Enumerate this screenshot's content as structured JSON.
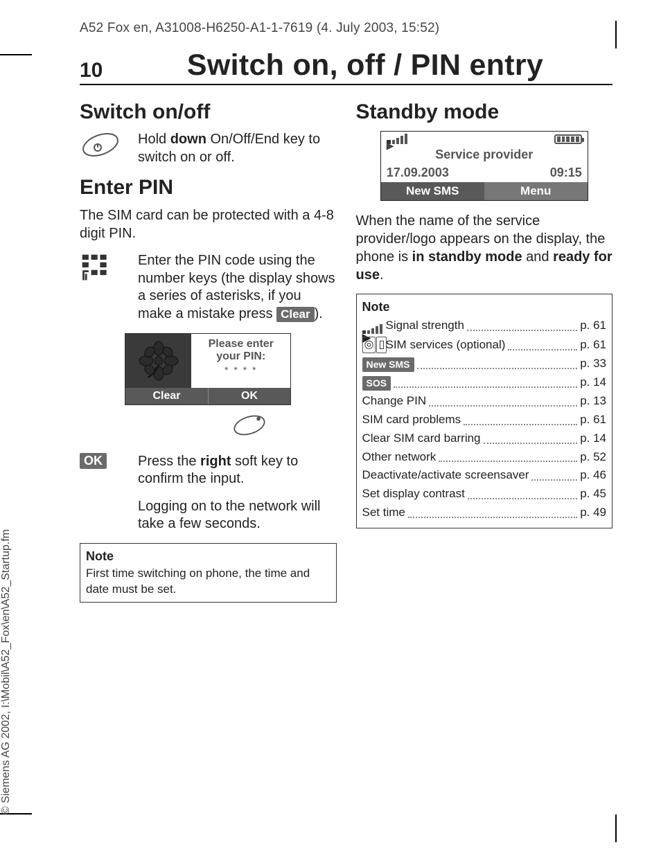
{
  "header": {
    "running": "A52 Fox en, A31008-H6250-A1-1-7619 (4. July 2003, 15:52)"
  },
  "page": {
    "number": "10",
    "title": "Switch on, off / PIN entry"
  },
  "left": {
    "h_switch": "Switch on/off",
    "switch_text_pre": "Hold ",
    "switch_text_bold": "down",
    "switch_text_post": " On/Off/End key to switch on or off.",
    "h_pin": "Enter PIN",
    "pin_intro": "The SIM card can be protected with a 4-8 digit PIN.",
    "pin_enter_pre": "Enter the PIN code using the number keys (the display shows a series of asterisks, if you make a mistake press ",
    "pin_enter_badge": "Clear",
    "pin_enter_post": ").",
    "mini": {
      "line1": "Please enter",
      "line2": "your PIN:",
      "stars": "* * * *",
      "soft_left": "Clear",
      "soft_right": "OK"
    },
    "ok_badge": "OK",
    "ok_text_pre": "Press the ",
    "ok_text_bold": "right",
    "ok_text_post": " soft key to confirm the input.",
    "logon_text": "Logging on to the network will take a few seconds.",
    "note_title": "Note",
    "note_body": "First time switching on phone, the time and date must be set."
  },
  "right": {
    "h_standby": "Standby mode",
    "sb": {
      "provider": "Service provider",
      "date": "17.09.2003",
      "time": "09:15",
      "soft_left": "New SMS",
      "soft_right": "Menu"
    },
    "para_pre": "When the name of the service provider/logo appears on the display, the phone is ",
    "para_b1": "in standby mode",
    "para_mid": " and ",
    "para_b2": "ready for use",
    "para_post": ".",
    "note_title": "Note",
    "items": [
      {
        "icon": "signal",
        "label": "Signal strength",
        "page": "p. 61"
      },
      {
        "icon": "sim",
        "label": "SIM services (optional)",
        "page": "p. 61"
      },
      {
        "icon": "pill",
        "pill": "New SMS",
        "label": "",
        "page": "p. 33"
      },
      {
        "icon": "pill",
        "pill": "SOS",
        "label": "",
        "page": "p. 14"
      },
      {
        "icon": "",
        "label": "Change PIN",
        "page": "p. 13"
      },
      {
        "icon": "",
        "label": "SIM card problems",
        "page": "p. 61"
      },
      {
        "icon": "",
        "label": "Clear SIM card barring",
        "page": "p. 14"
      },
      {
        "icon": "",
        "label": "Other network",
        "page": "p. 52"
      },
      {
        "icon": "",
        "label": "Deactivate/activate screensaver",
        "page": "p. 46"
      },
      {
        "icon": "",
        "label": "Set display contrast",
        "page": "p. 45"
      },
      {
        "icon": "",
        "label": "Set time",
        "page": "p. 49"
      }
    ]
  },
  "copyright": "© Siemens AG 2002, I:\\Mobil\\A52_Fox\\en\\A52_Startup.fm",
  "style": {
    "badge_bg": "#6b6b6b",
    "screen_soft_bg": "#595959",
    "text_muted": "#555"
  }
}
